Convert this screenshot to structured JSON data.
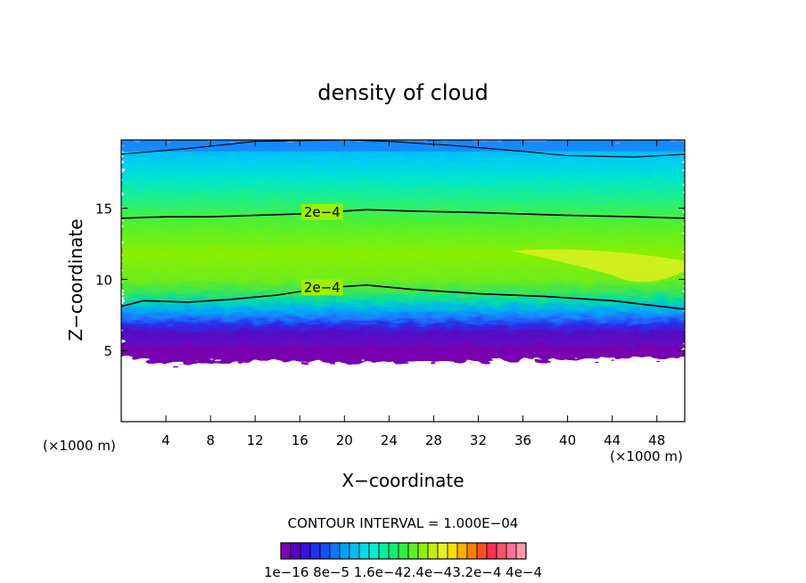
{
  "chart_data": {
    "type": "heatmap",
    "title": "density of cloud",
    "xlabel": "X−coordinate",
    "ylabel": "Z−coordinate",
    "x_unit_left": "(×1000 m)",
    "x_unit_right": "(×1000 m)",
    "xlim": [
      0,
      50.5
    ],
    "ylim": [
      0,
      19.8
    ],
    "x_ticks": [
      4,
      8,
      12,
      16,
      20,
      24,
      28,
      32,
      36,
      40,
      44,
      48
    ],
    "y_ticks": [
      5,
      10,
      15
    ],
    "x_tick_labels": [
      "4",
      "8",
      "12",
      "16",
      "20",
      "24",
      "28",
      "32",
      "36",
      "40",
      "44",
      "48"
    ],
    "y_tick_labels": [
      "5",
      "10",
      "15"
    ],
    "contour_interval_text": "CONTOUR INTERVAL = 1.000E−04",
    "contour_label": "2e−4",
    "colorbar": {
      "colors": [
        "#7a00b0",
        "#5a00c8",
        "#3a10dc",
        "#2030f0",
        "#1050ff",
        "#0a78ff",
        "#00a0ff",
        "#00c0f8",
        "#00dcee",
        "#00eecc",
        "#00f0a0",
        "#10f070",
        "#30f040",
        "#60f020",
        "#90f000",
        "#c0f010",
        "#e8f020",
        "#ffe000",
        "#ffb000",
        "#ff8000",
        "#ff5020",
        "#ff3050",
        "#ff5070",
        "#ff7090",
        "#ff98a8"
      ],
      "labels": [
        "1e−16",
        "8e−5",
        "1.6e−4",
        "2.4e−4",
        "3.2e−4",
        "4e−4"
      ],
      "label_text": "1e−16 8e−5 1.6e−42.4e−43.2e−4 4e−4"
    },
    "series": [
      {
        "x": [
          0,
          4,
          8,
          12,
          16,
          20,
          22,
          26,
          32,
          40,
          46,
          50.5
        ],
        "y": [
          14.3,
          14.4,
          14.4,
          14.5,
          14.6,
          14.8,
          14.9,
          14.8,
          14.7,
          14.5,
          14.4,
          14.3
        ]
      },
      {
        "x": [
          0,
          2,
          6,
          10,
          14,
          18,
          22,
          26,
          32,
          38,
          44,
          50.5
        ],
        "y": [
          8.1,
          8.5,
          8.4,
          8.6,
          8.9,
          9.4,
          9.6,
          9.3,
          9.0,
          8.8,
          8.5,
          7.9
        ]
      },
      {
        "x": [
          0,
          6,
          12,
          20,
          24,
          30,
          36,
          40,
          46,
          50.5
        ],
        "y": [
          18.8,
          19.2,
          19.7,
          19.8,
          19.7,
          19.4,
          19.0,
          18.7,
          18.6,
          18.8
        ]
      }
    ]
  }
}
